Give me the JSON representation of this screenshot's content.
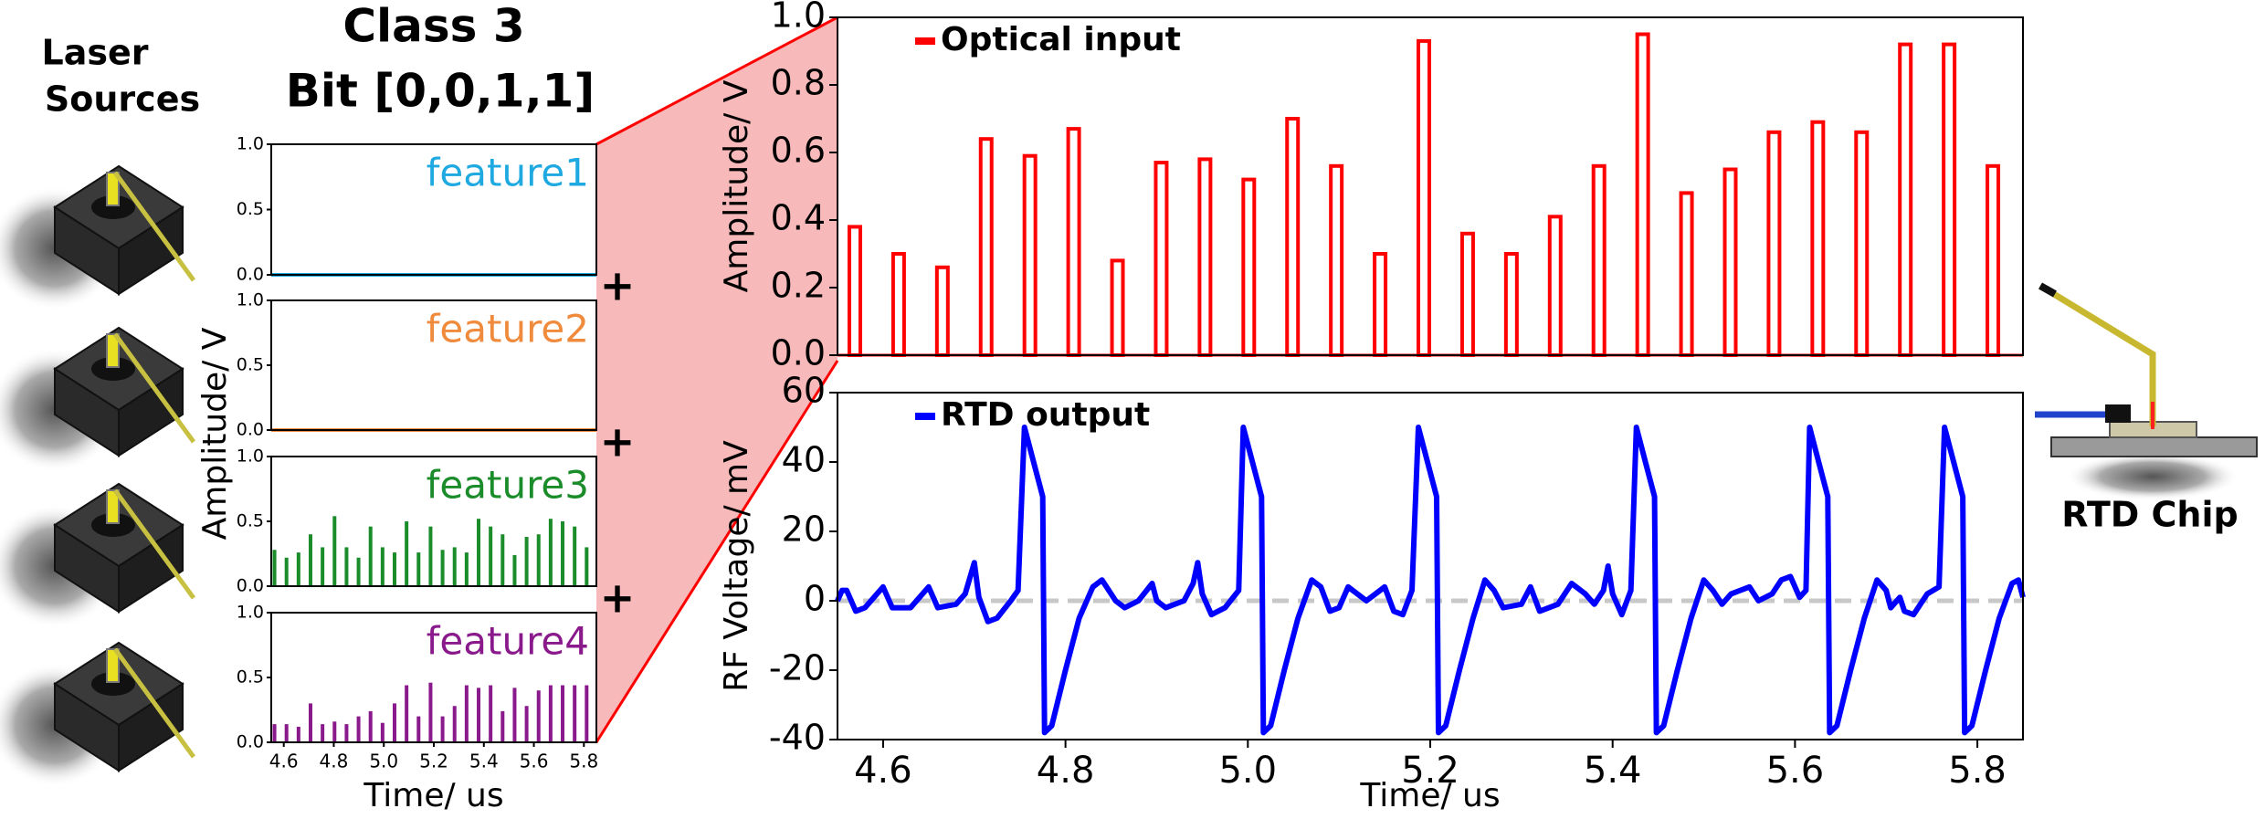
{
  "labels": {
    "laser_sources": [
      "Laser",
      "Sources"
    ],
    "class": "Class 3",
    "bits": "Bit [0,0,1,1]",
    "plus": [
      "+",
      "+",
      "+"
    ],
    "rtd_chip": "RTD Chip",
    "small_y_label": "Amplitude/ V",
    "small_x_label": "Time/ us"
  },
  "chart_data": [
    {
      "type": "line",
      "title": "feature1",
      "color": "#1fa9e1",
      "x": [
        4.55,
        5.85
      ],
      "values": [
        0,
        0
      ],
      "xlim": [
        4.55,
        5.85
      ],
      "ylim": [
        0,
        1
      ],
      "yticks": [
        {
          "value": 0,
          "label": "0.0"
        },
        0.5,
        {
          "value": 1,
          "label": "1.0"
        }
      ]
    },
    {
      "type": "line",
      "title": "feature2",
      "color": "#f08a3c",
      "x": [
        4.55,
        5.85
      ],
      "values": [
        0,
        0
      ],
      "xlim": [
        4.55,
        5.85
      ],
      "ylim": [
        0,
        1
      ],
      "yticks": [
        {
          "value": 0,
          "label": "0.0"
        },
        0.5,
        {
          "value": 1,
          "label": "1.0"
        }
      ]
    },
    {
      "type": "bar",
      "title": "feature3",
      "color": "#1a8c2a",
      "x": [
        4.563,
        4.611,
        4.659,
        4.707,
        4.755,
        4.803,
        4.851,
        4.899,
        4.947,
        4.995,
        5.043,
        5.091,
        5.139,
        5.187,
        5.235,
        5.283,
        5.331,
        5.379,
        5.427,
        5.475,
        5.523,
        5.571,
        5.619,
        5.667,
        5.715,
        5.763,
        5.811
      ],
      "values": [
        0.28,
        0.22,
        0.26,
        0.4,
        0.3,
        0.54,
        0.3,
        0.22,
        0.46,
        0.3,
        0.26,
        0.5,
        0.26,
        0.46,
        0.28,
        0.3,
        0.26,
        0.52,
        0.46,
        0.4,
        0.24,
        0.38,
        0.4,
        0.52,
        0.5,
        0.46,
        0.3
      ],
      "xlim": [
        4.55,
        5.85
      ],
      "ylim": [
        0,
        1
      ],
      "yticks": [
        {
          "value": 0,
          "label": "0.0"
        },
        0.5,
        {
          "value": 1,
          "label": "1.0"
        }
      ]
    },
    {
      "type": "bar",
      "title": "feature4",
      "color": "#8a1a8c",
      "x": [
        4.563,
        4.611,
        4.659,
        4.707,
        4.755,
        4.803,
        4.851,
        4.899,
        4.947,
        4.995,
        5.043,
        5.091,
        5.139,
        5.187,
        5.235,
        5.283,
        5.331,
        5.379,
        5.427,
        5.475,
        5.523,
        5.571,
        5.619,
        5.667,
        5.715,
        5.763,
        5.811
      ],
      "values": [
        0.14,
        0.14,
        0.12,
        0.3,
        0.14,
        0.16,
        0.14,
        0.2,
        0.24,
        0.15,
        0.3,
        0.44,
        0.2,
        0.46,
        0.2,
        0.28,
        0.44,
        0.42,
        0.44,
        0.24,
        0.42,
        0.28,
        0.4,
        0.44,
        0.44,
        0.44,
        0.44
      ],
      "xlim": [
        4.55,
        5.85
      ],
      "ylim": [
        0,
        1
      ],
      "yticks": [
        {
          "value": 0,
          "label": "0.0"
        },
        0.5,
        {
          "value": 1,
          "label": "1.0"
        }
      ],
      "xticks": [
        4.6,
        4.8,
        {
          "value": 5,
          "label": "5.0"
        },
        5.2,
        5.4,
        5.6,
        5.8
      ]
    },
    {
      "type": "bar",
      "y_label": "Amplitude/ V",
      "x": [
        4.563,
        4.611,
        4.659,
        4.707,
        4.755,
        4.803,
        4.851,
        4.899,
        4.947,
        4.995,
        5.043,
        5.091,
        5.139,
        5.187,
        5.235,
        5.283,
        5.331,
        5.379,
        5.427,
        5.475,
        5.523,
        5.571,
        5.619,
        5.667,
        5.715,
        5.763,
        5.811
      ],
      "series": [
        {
          "name": "Optical input",
          "color": "#ff0000",
          "values": [
            0.38,
            0.3,
            0.26,
            0.64,
            0.59,
            0.67,
            0.28,
            0.57,
            0.58,
            0.52,
            0.7,
            0.56,
            0.3,
            0.93,
            0.36,
            0.3,
            0.41,
            0.56,
            0.95,
            0.48,
            0.55,
            0.66,
            0.69,
            0.66,
            0.92,
            0.92,
            0.56
          ]
        }
      ],
      "xlim": [
        4.55,
        5.85
      ],
      "ylim": [
        0,
        1
      ],
      "yticks": [
        {
          "value": 0,
          "label": "0.0"
        },
        0.2,
        0.4,
        0.6,
        0.8,
        {
          "value": 1,
          "label": "1.0"
        }
      ]
    },
    {
      "type": "line",
      "y_label": "RF Voltage/ mV",
      "x_label": "Time/ us",
      "reference_line": 0,
      "x": [
        4.55,
        4.555,
        4.56,
        4.57,
        4.58,
        4.6,
        4.61,
        4.63,
        4.65,
        4.66,
        4.68,
        4.69,
        4.7,
        4.705,
        4.715,
        4.725,
        4.74,
        4.748,
        4.755,
        4.765,
        4.775,
        4.777,
        4.785,
        4.8,
        4.815,
        4.83,
        4.84,
        4.855,
        4.865,
        4.88,
        4.895,
        4.9,
        4.91,
        4.93,
        4.94,
        4.945,
        4.95,
        4.96,
        4.975,
        4.99,
        4.995,
        5.005,
        5.015,
        5.017,
        5.025,
        5.04,
        5.055,
        5.07,
        5.08,
        5.09,
        5.1,
        5.11,
        5.12,
        5.13,
        5.15,
        5.16,
        5.17,
        5.18,
        5.187,
        5.197,
        5.207,
        5.209,
        5.217,
        5.232,
        5.247,
        5.26,
        5.27,
        5.28,
        5.3,
        5.31,
        5.32,
        5.34,
        5.355,
        5.37,
        5.38,
        5.39,
        5.395,
        5.4,
        5.41,
        5.42,
        5.426,
        5.436,
        5.446,
        5.448,
        5.456,
        5.471,
        5.486,
        5.5,
        5.51,
        5.52,
        5.53,
        5.55,
        5.56,
        5.575,
        5.585,
        5.595,
        5.605,
        5.612,
        5.616,
        5.626,
        5.636,
        5.638,
        5.646,
        5.661,
        5.676,
        5.69,
        5.7,
        5.705,
        5.715,
        5.72,
        5.73,
        5.745,
        5.758,
        5.764,
        5.774,
        5.784,
        5.786,
        5.794,
        5.809,
        5.824,
        5.838,
        5.845,
        5.85
      ],
      "series": [
        {
          "name": "RTD output",
          "color": "#0000ff",
          "values": [
            0,
            3,
            3,
            -3,
            -2,
            4,
            -2,
            -2,
            4,
            -2,
            -1,
            2,
            11,
            1,
            -6,
            -5,
            0,
            3,
            50,
            40,
            30,
            -38,
            -36,
            -20,
            -5,
            4,
            6,
            0,
            -2,
            0,
            5,
            0,
            -2,
            0,
            5,
            11,
            2,
            -4,
            -2,
            3,
            50,
            40,
            30,
            -38,
            -36,
            -20,
            -5,
            6,
            4,
            -3,
            -2,
            4,
            2,
            0,
            4,
            -3,
            -4,
            3,
            50,
            40,
            30,
            -38,
            -36,
            -20,
            -5,
            6,
            3,
            -2,
            -1,
            4,
            -3,
            -1,
            5,
            2,
            -1,
            3,
            10,
            2,
            -4,
            3,
            50,
            40,
            30,
            -38,
            -36,
            -20,
            -5,
            6,
            3,
            -1,
            2,
            4,
            0,
            2,
            6,
            7,
            1,
            3,
            50,
            40,
            30,
            -38,
            -36,
            -20,
            -5,
            6,
            3,
            -2,
            1,
            -3,
            -4,
            2,
            4,
            50,
            40,
            30,
            -38,
            -36,
            -20,
            -5,
            5,
            6,
            1
          ]
        }
      ],
      "xlim": [
        4.55,
        5.85
      ],
      "ylim": [
        -40,
        60
      ],
      "yticks": [
        -40,
        -20,
        0,
        20,
        40,
        60
      ],
      "xticks": [
        4.6,
        4.8,
        {
          "value": 5,
          "label": "5.0"
        },
        5.2,
        5.4,
        5.6,
        5.8
      ]
    }
  ]
}
